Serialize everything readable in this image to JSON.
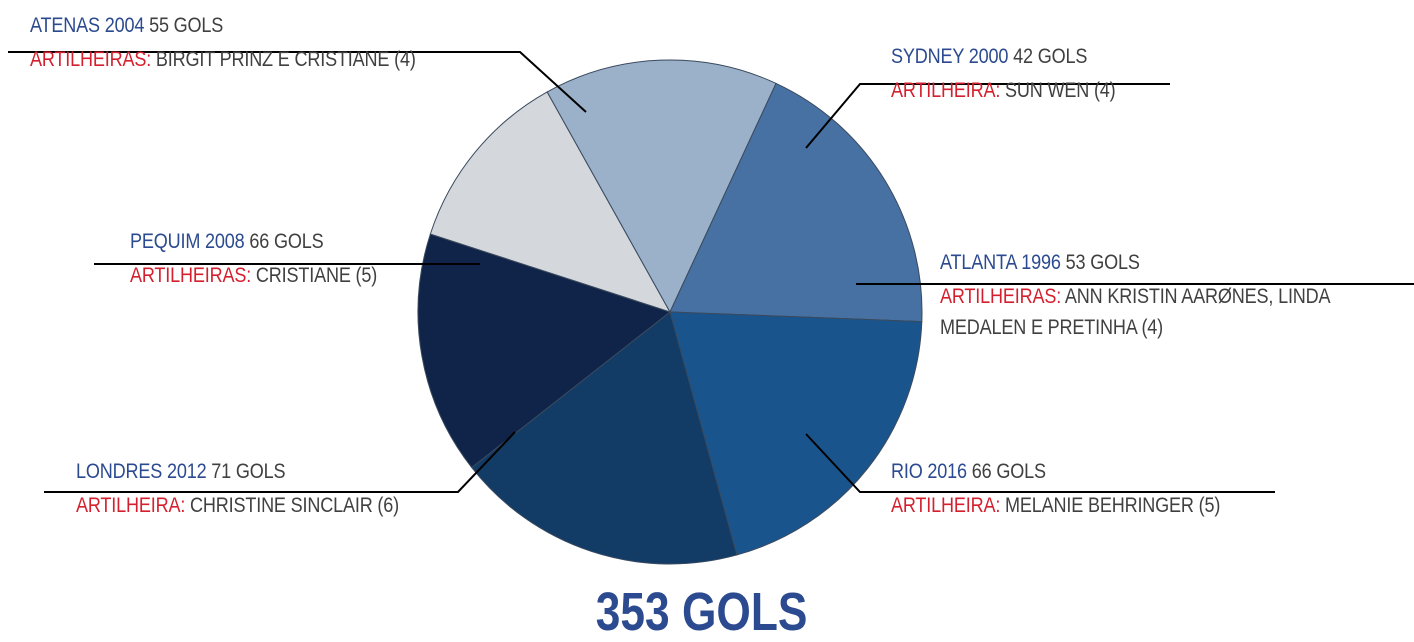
{
  "chart_data": {
    "type": "pie",
    "total_label": "353 GOLS",
    "slices": [
      {
        "edition": "SYDNEY 2000",
        "goals_text": "42 GOLS",
        "value": 42,
        "scorer_title": "ARTILHEIRA:",
        "scorers": "SUN WEN (4)",
        "color": "#d4d7dc"
      },
      {
        "edition": "ATLANTA 1996",
        "goals_text": "53 GOLS",
        "value": 53,
        "scorer_title": "ARTILHEIRAS:",
        "scorers": "ANN KRISTIN AARØNES, LINDA",
        "scorers_line2": "MEDALEN E PRETINHA (4)",
        "color": "#9bb1c9"
      },
      {
        "edition": "RIO 2016",
        "goals_text": "66 GOLS",
        "value": 66,
        "scorer_title": "ARTILHEIRA:",
        "scorers": "MELANIE BEHRINGER (5)",
        "color": "#4671a2"
      },
      {
        "edition": "LONDRES 2012",
        "goals_text": "71 GOLS",
        "value": 71,
        "scorer_title": "ARTILHEIRA:",
        "scorers": "CHRISTINE SINCLAIR (6)",
        "color": "#1a548c"
      },
      {
        "edition": "PEQUIM 2008",
        "goals_text": "66 GOLS",
        "value": 66,
        "scorer_title": "ARTILHEIRAS:",
        "scorers": "CRISTIANE (5)",
        "color": "#123c66"
      },
      {
        "edition": "ATENAS 2004",
        "goals_text": "55 GOLS",
        "value": 55,
        "scorer_title": "ARTILHEIRAS:",
        "scorers": "BIRGIT PRINZ E CRISTIANE (4)",
        "color": "#0f2448"
      }
    ]
  }
}
